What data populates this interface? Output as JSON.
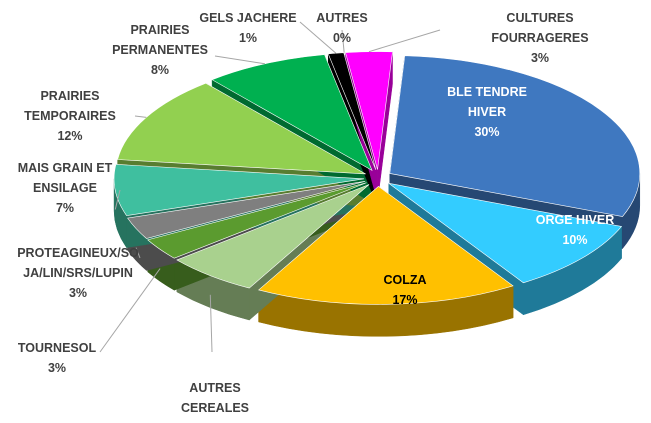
{
  "chart_data": {
    "type": "pie3d",
    "categories": [
      "BLE TENDRE HIVER",
      "ORGE HIVER",
      "COLZA",
      "AUTRES CEREALES",
      "TOURNESOL",
      "PROTEAGINEUX/SOJA/LIN/SRS/LUPIN",
      "MAIS GRAIN ET ENSILAGE",
      "PRAIRIES TEMPORAIRES",
      "PRAIRIES PERMANENTES",
      "GELS JACHERE",
      "AUTRES",
      "CULTURES FOURRAGERES"
    ],
    "values": [
      30,
      10,
      17,
      6,
      3,
      3,
      7,
      12,
      8,
      1,
      0,
      3
    ],
    "value_labels": [
      "30%",
      "10%",
      "17%",
      null,
      "3%",
      "3%",
      "7%",
      "12%",
      "8%",
      "1%",
      "0%",
      "3%"
    ],
    "colors": [
      "#3f78c0",
      "#33ccff",
      "#ffc000",
      "#a9d18e",
      "#5b9b2f",
      "#7f7f7f",
      "#3fbf9f",
      "#92d050",
      "#00b050",
      "#000000",
      "#ff00ff",
      "#ff00ff"
    ]
  }
}
